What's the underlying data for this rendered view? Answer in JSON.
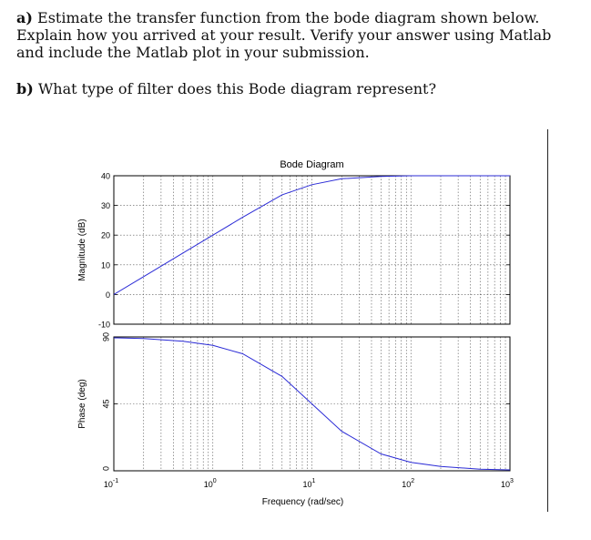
{
  "questions": {
    "a_label": "a)",
    "a_text": "Estimate the transfer function from the bode diagram shown below. Explain how you arrived at your result. Verify your answer using Matlab and include the Matlab plot in your submission.",
    "b_label": "b)",
    "b_text": "What type of filter does this Bode diagram represent?"
  },
  "chart_data": {
    "type": "line",
    "title": "Bode Diagram",
    "xlabel": "Frequency (rad/sec)",
    "xscale": "log",
    "xlim": [
      0.1,
      1000
    ],
    "x_ticks": [
      {
        "base": "10",
        "exp": "-1"
      },
      {
        "base": "10",
        "exp": "0"
      },
      {
        "base": "10",
        "exp": "1"
      },
      {
        "base": "10",
        "exp": "2"
      },
      {
        "base": "10",
        "exp": "3"
      }
    ],
    "grid": true,
    "line_color": "#2b2bd6",
    "panels": [
      {
        "ylabel": "Magnitude (dB)",
        "ylim": [
          -10,
          40
        ],
        "yticks": [
          "40",
          "30",
          "20",
          "10",
          "0",
          "-10"
        ],
        "x": [
          0.1,
          0.2,
          0.5,
          1,
          2,
          5,
          10,
          20,
          50,
          100,
          200,
          500,
          1000
        ],
        "y": [
          0.0,
          6.0,
          14.0,
          20.0,
          26.0,
          33.6,
          37.0,
          39.0,
          39.8,
          40.0,
          40.0,
          40.0,
          40.0
        ]
      },
      {
        "ylabel": "Phase (deg)",
        "ylim": [
          0,
          90
        ],
        "yticks": [
          "90",
          "45",
          "0"
        ],
        "x": [
          0.1,
          0.2,
          0.5,
          1,
          2,
          5,
          10,
          20,
          50,
          100,
          200,
          500,
          1000
        ],
        "y": [
          89.4,
          88.9,
          87.1,
          84.3,
          78.7,
          63.4,
          45.0,
          26.6,
          11.3,
          5.7,
          2.9,
          1.1,
          0.6
        ]
      }
    ]
  }
}
